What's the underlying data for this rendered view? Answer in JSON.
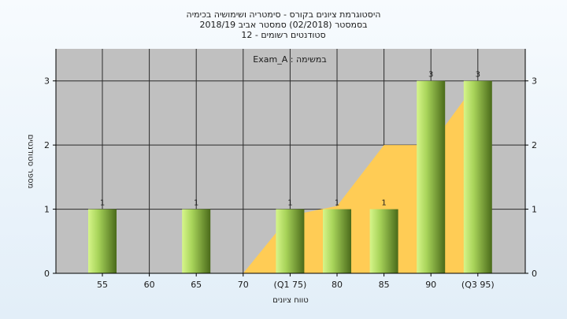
{
  "chart_data": {
    "type": "bar",
    "title_lines": [
      "היסטוגרמת ציונים בקורס - סימטריה ושימושיה בכימיה",
      "בסמסטר  (02/2018)  סמסטר אביב 2018/19",
      "סטודנטים רשומים - 12"
    ],
    "legend_text": "במשימה : Exam_A",
    "xlabel": "טווח ציונים",
    "ylabel": "מספר סטודנטים",
    "categories": [
      "55",
      "60",
      "65",
      "70",
      "(Q1 75)",
      "80",
      "85",
      "90",
      "(Q3 95)"
    ],
    "values": [
      1,
      0,
      1,
      0,
      1,
      1,
      1,
      3,
      3
    ],
    "data_labels": [
      "1",
      "",
      "1",
      "",
      "1",
      "1",
      "1",
      "3",
      "3"
    ],
    "yticks": [
      "0",
      "1",
      "2",
      "3"
    ],
    "ylim": [
      0,
      3.5
    ],
    "grid": true,
    "quartile_band": {
      "x": [
        "70",
        "(Q1 75)",
        "80",
        "85",
        "90",
        "(Q3 95)"
      ],
      "values": [
        0,
        0.9,
        1.05,
        2,
        2,
        3
      ]
    },
    "colors": {
      "plot_bg": "#c0c0c0",
      "band": "#ffcc55",
      "bar_light": "#c8ee78",
      "bar_dark": "#4d6b1c",
      "grid": "#2b2b2b"
    }
  }
}
